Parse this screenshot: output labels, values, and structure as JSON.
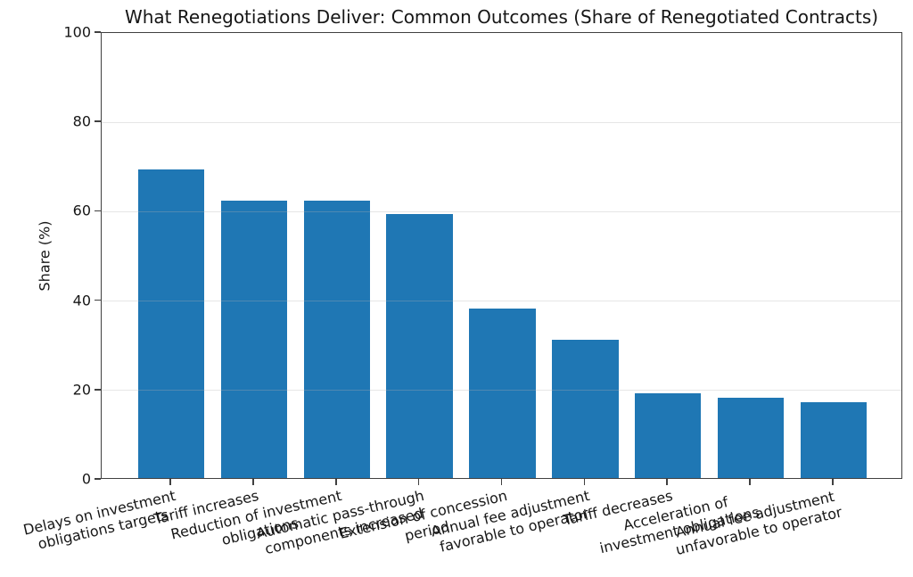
{
  "chart_data": {
    "type": "bar",
    "title": "What Renegotiations Deliver: Common Outcomes (Share of Renegotiated Contracts)",
    "xlabel": "",
    "ylabel": "Share (%)",
    "ylim": [
      0,
      100
    ],
    "yticks": [
      0,
      20,
      40,
      60,
      80,
      100
    ],
    "grid": true,
    "grid_axis": "y",
    "legend": "none",
    "bar_color": "#1f77b4",
    "categories": [
      "Delays on investment\nobligations targets",
      "Tariff increases",
      "Reduction of investment\nobligations",
      "Automatic pass-through\ncomponents increased",
      "Extension of concession\nperiod",
      "Annual fee adjustment\nfavorable to operator",
      "Tariff decreases",
      "Acceleration of\ninvestment obligations",
      "Annual fee adjustment\nunfavorable to operator"
    ],
    "values": [
      69,
      62,
      62,
      59,
      38,
      31,
      19,
      18,
      17
    ]
  }
}
